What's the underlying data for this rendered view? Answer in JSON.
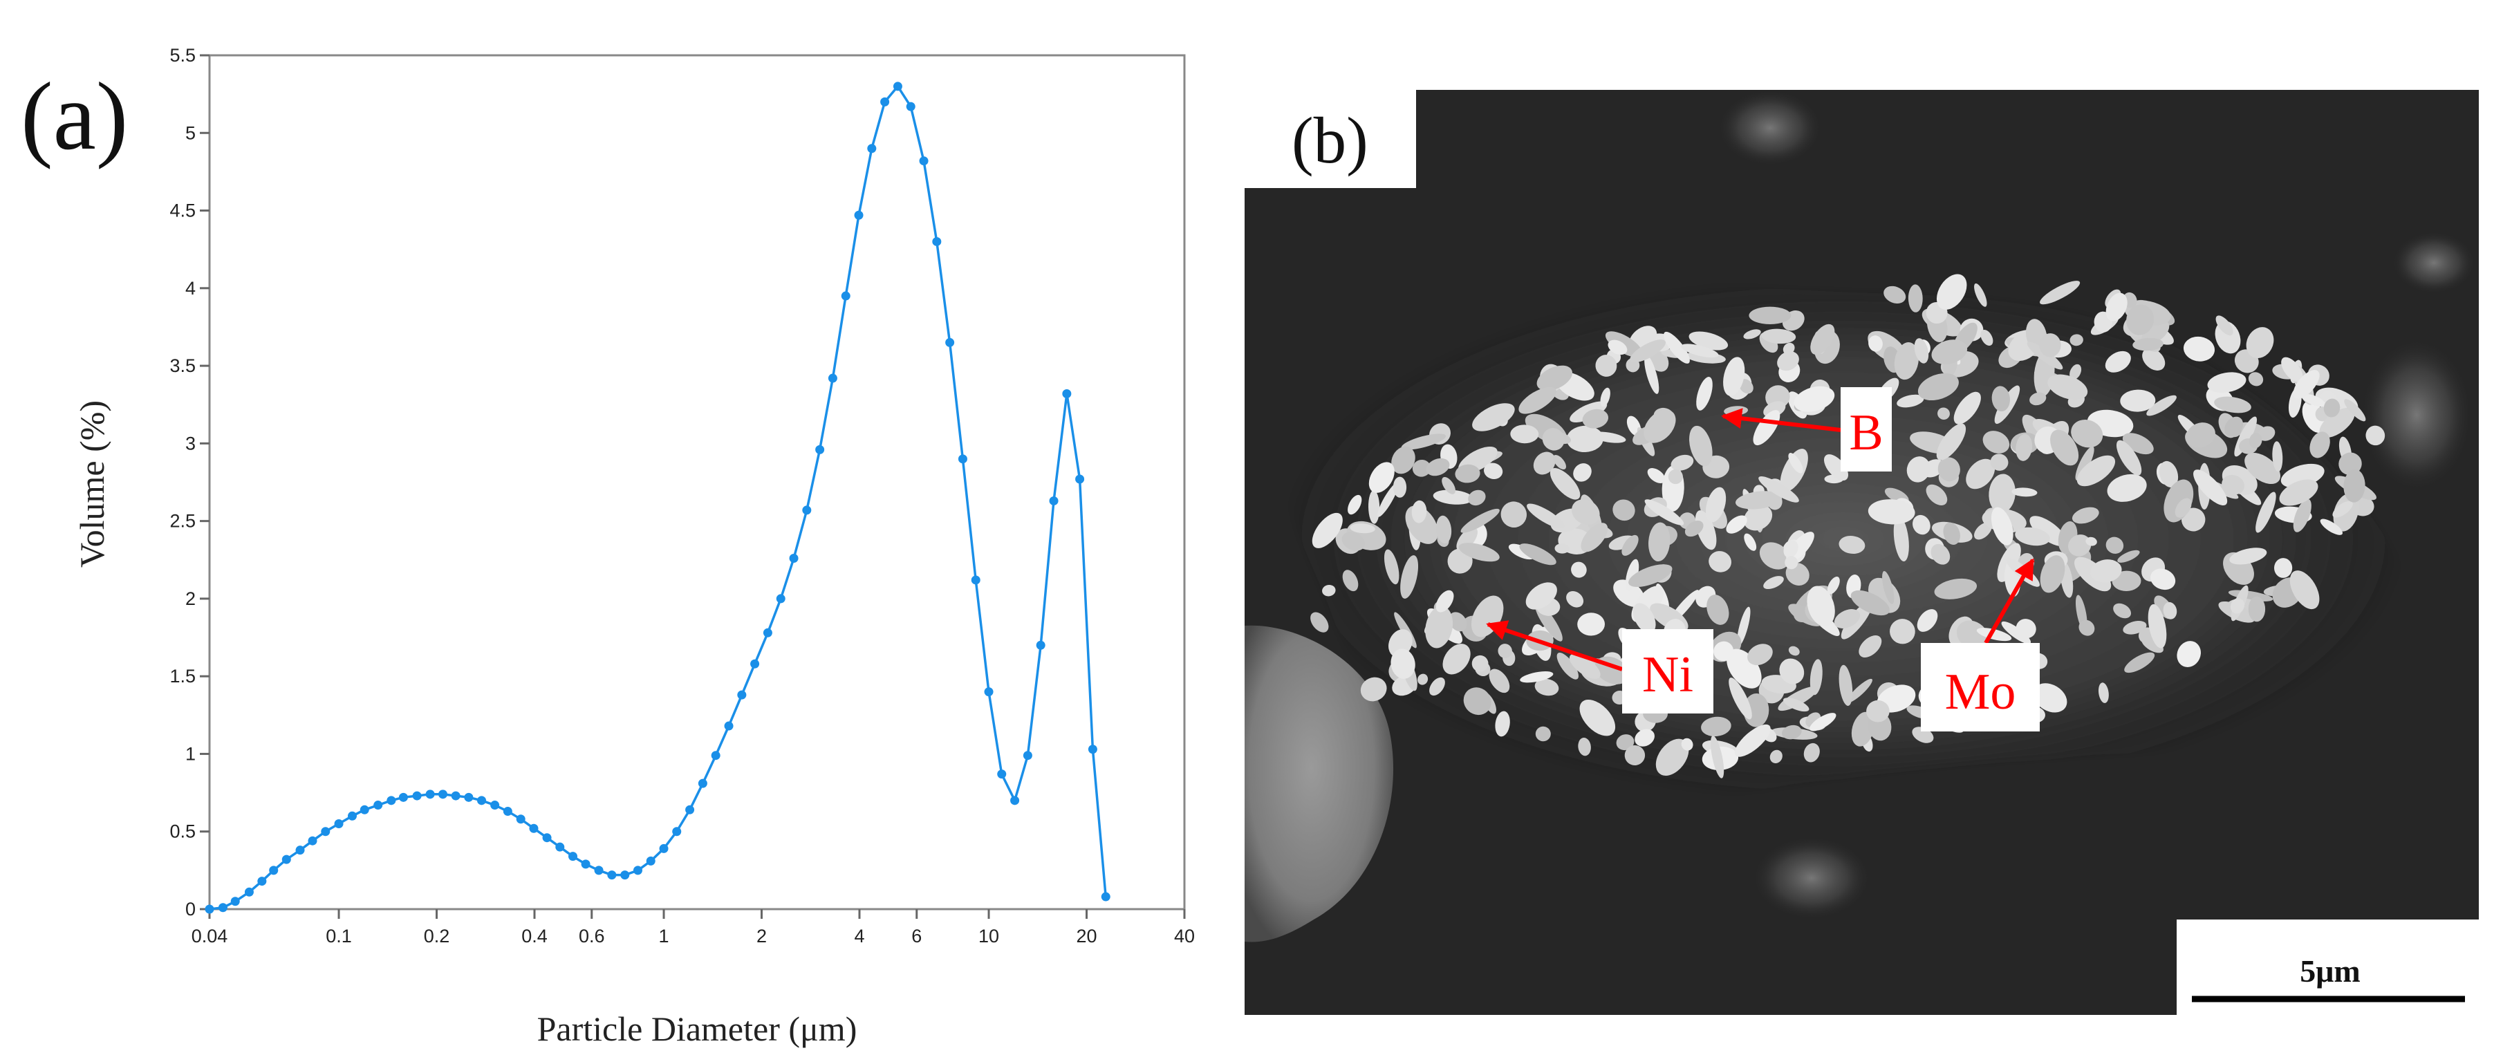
{
  "panel_a": {
    "label": "(a)",
    "chart_data": {
      "type": "line",
      "xscale": "log",
      "xlim": [
        0.04,
        40
      ],
      "ylim": [
        0,
        5.5
      ],
      "xlabel": "Particle Diameter (μm)",
      "ylabel": "Volume (%)",
      "x_ticks": [
        0.04,
        0.1,
        0.2,
        0.4,
        0.6,
        1,
        2,
        4,
        6,
        10,
        20,
        40
      ],
      "x_tick_labels": [
        "0.04",
        "0.1",
        "0.2",
        "0.4",
        "0.6",
        "1",
        "2",
        "4",
        "6",
        "10",
        "20",
        "40"
      ],
      "y_ticks": [
        0,
        0.5,
        1,
        1.5,
        2,
        2.5,
        3,
        3.5,
        4,
        4.5,
        5,
        5.5
      ],
      "y_tick_labels": [
        "0",
        "0.5",
        "1",
        "1.5",
        "2",
        "2.5",
        "3",
        "3.5",
        "4",
        "4.5",
        "5",
        "5.5"
      ],
      "grid": false,
      "series": [
        {
          "color": "#1a8fe8",
          "x": [
            0.04,
            0.044,
            0.048,
            0.053,
            0.058,
            0.063,
            0.069,
            0.076,
            0.083,
            0.091,
            0.1,
            0.11,
            0.12,
            0.132,
            0.145,
            0.158,
            0.174,
            0.191,
            0.209,
            0.229,
            0.251,
            0.275,
            0.302,
            0.331,
            0.363,
            0.398,
            0.437,
            0.479,
            0.525,
            0.575,
            0.631,
            0.692,
            0.759,
            0.832,
            0.912,
            1.0,
            1.096,
            1.202,
            1.318,
            1.445,
            1.585,
            1.738,
            1.905,
            2.089,
            2.291,
            2.512,
            2.754,
            3.02,
            3.311,
            3.631,
            3.981,
            4.365,
            4.786,
            5.248,
            5.754,
            6.31,
            6.918,
            7.586,
            8.318,
            9.12,
            10.0,
            10.96,
            12.02,
            13.18,
            14.45,
            15.85,
            17.38,
            19.05,
            20.89,
            22.91
          ],
          "y": [
            0.0,
            0.01,
            0.05,
            0.11,
            0.18,
            0.25,
            0.32,
            0.38,
            0.44,
            0.5,
            0.55,
            0.6,
            0.64,
            0.67,
            0.7,
            0.72,
            0.73,
            0.74,
            0.74,
            0.73,
            0.72,
            0.7,
            0.67,
            0.63,
            0.58,
            0.52,
            0.46,
            0.4,
            0.34,
            0.29,
            0.25,
            0.22,
            0.22,
            0.25,
            0.31,
            0.39,
            0.5,
            0.64,
            0.81,
            0.99,
            1.18,
            1.38,
            1.58,
            1.78,
            2.0,
            2.26,
            2.57,
            2.96,
            3.42,
            3.95,
            4.47,
            4.9,
            5.2,
            5.3,
            5.17,
            4.82,
            4.3,
            3.65,
            2.9,
            2.12,
            1.4,
            0.87,
            0.7,
            0.99,
            1.7,
            2.63,
            3.32,
            2.77,
            1.03,
            0.08
          ]
        }
      ]
    }
  },
  "panel_b": {
    "label": "(b)",
    "annotations": [
      "B",
      "Ni",
      "Mo"
    ],
    "scale_bar": "5μm"
  },
  "colors": {
    "line": "#1a8fe8",
    "arrow": "#ff0000",
    "label_text": "#ff0000",
    "sem_background": "#262626"
  }
}
